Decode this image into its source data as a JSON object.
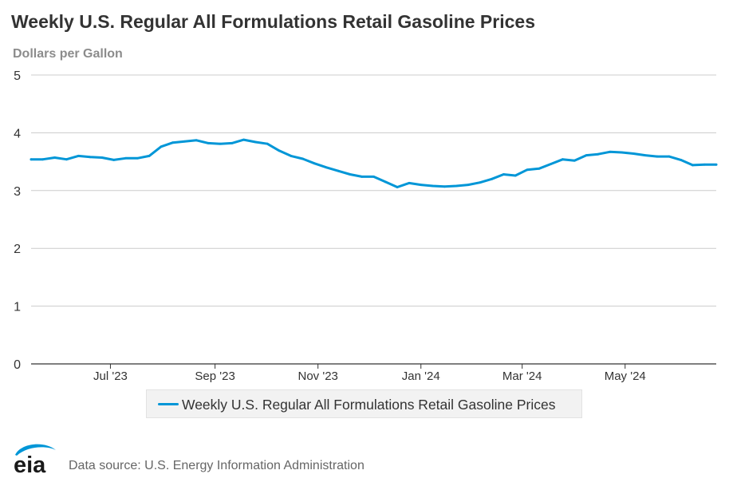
{
  "chart_data": {
    "type": "line",
    "title": "Weekly U.S. Regular All Formulations Retail Gasoline Prices",
    "subtitle": "Dollars per Gallon",
    "y_ticks": [
      0,
      1,
      2,
      3,
      4,
      5
    ],
    "ylim": [
      0,
      5
    ],
    "x_tick_labels": [
      "Jul '23",
      "Sep '23",
      "Nov '23",
      "Jan '24",
      "Mar '24",
      "May '24"
    ],
    "x_tick_dates": [
      "2023-07-01",
      "2023-09-01",
      "2023-11-01",
      "2024-01-01",
      "2024-03-01",
      "2024-05-01"
    ],
    "xlim": [
      "2023-05-15",
      "2024-06-24"
    ],
    "grid": "horizontal",
    "legend_position": "bottom",
    "series": [
      {
        "name": "Weekly U.S. Regular All Formulations Retail Gasoline Prices",
        "color": "#0096d7",
        "x": [
          "2023-05-15",
          "2023-05-22",
          "2023-05-29",
          "2023-06-05",
          "2023-06-12",
          "2023-06-19",
          "2023-06-26",
          "2023-07-03",
          "2023-07-10",
          "2023-07-17",
          "2023-07-24",
          "2023-07-31",
          "2023-08-07",
          "2023-08-14",
          "2023-08-21",
          "2023-08-28",
          "2023-09-04",
          "2023-09-11",
          "2023-09-18",
          "2023-09-25",
          "2023-10-02",
          "2023-10-09",
          "2023-10-16",
          "2023-10-23",
          "2023-10-30",
          "2023-11-06",
          "2023-11-13",
          "2023-11-20",
          "2023-11-27",
          "2023-12-04",
          "2023-12-11",
          "2023-12-18",
          "2023-12-25",
          "2024-01-01",
          "2024-01-08",
          "2024-01-15",
          "2024-01-22",
          "2024-01-29",
          "2024-02-05",
          "2024-02-12",
          "2024-02-19",
          "2024-02-26",
          "2024-03-04",
          "2024-03-11",
          "2024-03-18",
          "2024-03-25",
          "2024-04-01",
          "2024-04-08",
          "2024-04-15",
          "2024-04-22",
          "2024-04-29",
          "2024-05-06",
          "2024-05-13",
          "2024-05-20",
          "2024-05-27",
          "2024-06-03",
          "2024-06-10",
          "2024-06-17",
          "2024-06-24"
        ],
        "values": [
          3.54,
          3.54,
          3.57,
          3.54,
          3.6,
          3.58,
          3.57,
          3.53,
          3.56,
          3.56,
          3.6,
          3.76,
          3.83,
          3.85,
          3.87,
          3.82,
          3.81,
          3.82,
          3.88,
          3.84,
          3.81,
          3.69,
          3.6,
          3.55,
          3.47,
          3.4,
          3.34,
          3.28,
          3.24,
          3.24,
          3.15,
          3.06,
          3.13,
          3.1,
          3.08,
          3.07,
          3.08,
          3.1,
          3.14,
          3.2,
          3.28,
          3.26,
          3.36,
          3.38,
          3.46,
          3.54,
          3.52,
          3.61,
          3.63,
          3.67,
          3.66,
          3.64,
          3.61,
          3.59,
          3.59,
          3.53,
          3.44,
          3.45,
          3.45
        ]
      }
    ]
  },
  "legend": {
    "label": "Weekly U.S. Regular All Formulations Retail Gasoline Prices"
  },
  "footer": {
    "logo_text": "eia",
    "source": "Data source: U.S. Energy Information Administration"
  }
}
